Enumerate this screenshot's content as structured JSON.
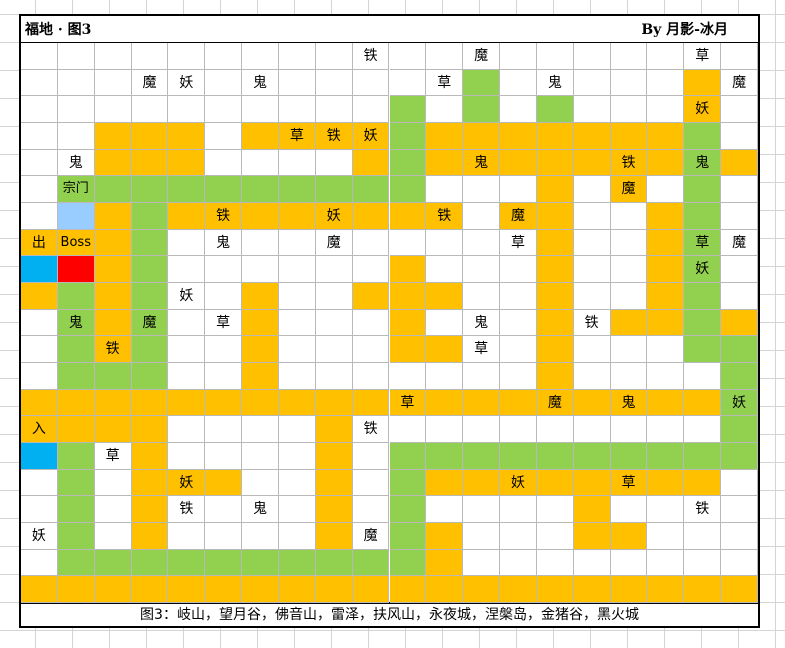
{
  "header": {
    "title": "福地 · 图3",
    "author": "By 月影-冰月"
  },
  "footer": {
    "caption": "图3：岐山，望月谷，佛音山，雷泽，扶风山，永夜城，涅槃岛，金猪谷，黑火城"
  },
  "watermark": "",
  "colors": {
    "W": "#ffffff",
    "Y": "#ffc000",
    "G": "#92d050",
    "B": "#00b0f0",
    "R": "#ff0000",
    "C": "#99ccff"
  },
  "legend_map": {
    "fields": "Y = path (orange), G = path (green), W = blank, B = entrance/exit, R = boss, C = sect"
  },
  "map": {
    "rows": [
      "WWWWWWWWWWWWWWWWWWWW",
      "WWWWWWWWWWWWGWWWWWYW",
      "WWWWWWWWWWGWGWGWWWYW",
      "WWYYYWYYYYGYYYYYYYGW",
      "WWYYYWWWWYGYYYYYYYGY",
      "WGGGGGGGGGGWWWYWYWGW",
      "WCYGYYYYYYYYWYYWWYGW",
      "YYYGWWWWWWWWWWYWWYGW",
      "BRYGWWWWWWYWWWYWWYGW",
      "YGYGWWYWWYYYWWYWWYGW",
      "WGYGWWYWWWYWWWYWYYGY",
      "WGYGWWYWWWYYWWYWWWGG",
      "WGGGWWYWWWWWWWYWWWWG",
      "YYYYYYYYYYYYYYYYYYYG",
      "YYYYWWWWYWWWWWWWWWWG",
      "BGWYWWWWYWGGGGGGGGGG",
      "WGWYYYWWYWGYYYYYYYYW",
      "WGWYWWWWYWGWWWWYWWWW",
      "WGWYWWWWYWGYWWWYYWWW",
      "WGGGGGGGGGGYWWWWWWWW",
      "YYYYYYYYYYYYYYYYYYYY"
    ],
    "labels": {
      "0": {
        "9": "铁",
        "12": "魔",
        "18": "草"
      },
      "1": {
        "3": "魔",
        "4": "妖",
        "6": "鬼",
        "11": "草",
        "14": "鬼",
        "19": "魔"
      },
      "2": {
        "18": "妖"
      },
      "3": {
        "7": "草",
        "8": "铁",
        "9": "妖"
      },
      "4": {
        "1": "鬼",
        "12": "鬼",
        "16": "铁",
        "18": "鬼"
      },
      "5": {
        "1": "宗门",
        "16": "魔"
      },
      "6": {
        "5": "铁",
        "8": "妖",
        "11": "铁",
        "13": "魔"
      },
      "7": {
        "0": "出",
        "1": "Boss",
        "5": "鬼",
        "8": "魔",
        "13": "草",
        "18": "草",
        "19": "魔"
      },
      "8": {
        "18": "妖"
      },
      "9": {
        "4": "妖"
      },
      "10": {
        "1": "鬼",
        "3": "魔",
        "5": "草",
        "12": "鬼",
        "15": "铁"
      },
      "11": {
        "2": "铁",
        "12": "草"
      },
      "13": {
        "10": "草",
        "14": "魔",
        "16": "鬼",
        "19": "妖"
      },
      "14": {
        "0": "入",
        "9": "铁"
      },
      "15": {
        "2": "草"
      },
      "16": {
        "4": "妖",
        "13": "妖",
        "16": "草"
      },
      "17": {
        "4": "铁",
        "6": "鬼",
        "18": "铁"
      },
      "18": {
        "0": "妖",
        "9": "魔"
      }
    }
  }
}
